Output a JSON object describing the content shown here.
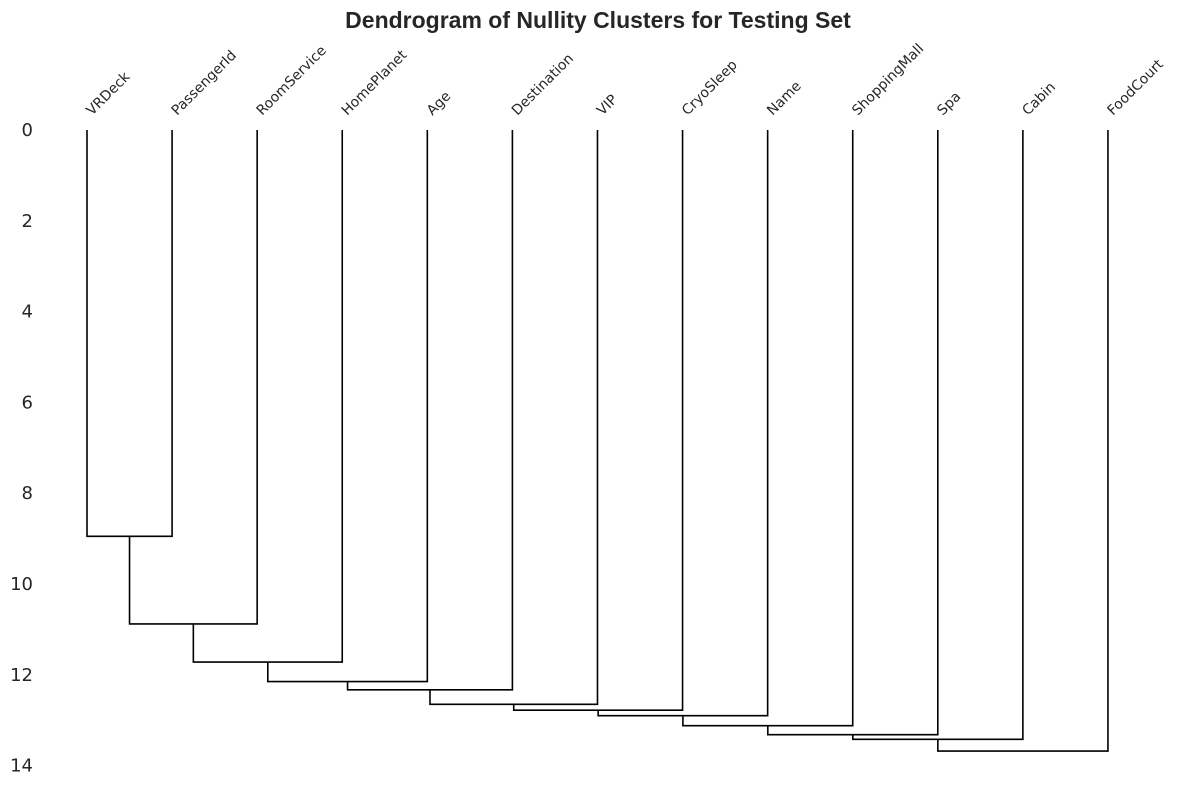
{
  "chart_data": {
    "type": "dendrogram",
    "title": "Dendrogram of Nullity Clusters for Testing Set",
    "xlabel": "",
    "ylabel": "",
    "leaves": [
      "VRDeck",
      "PassengerId",
      "RoomService",
      "HomePlanet",
      "Age",
      "Destination",
      "VIP",
      "CryoSleep",
      "Name",
      "ShoppingMall",
      "Spa",
      "Cabin",
      "FoodCourt"
    ],
    "merges": [
      {
        "left": "VRDeck",
        "right": "PassengerId",
        "height": 8.95
      },
      {
        "left": "VRDeck+PassengerId",
        "right": "RoomService",
        "height": 10.88
      },
      {
        "left": "VRDeck+PassengerId+RoomService",
        "right": "HomePlanet",
        "height": 11.72
      },
      {
        "left": "VRDeck+PassengerId+RoomService+HomePlanet",
        "right": "Age",
        "height": 12.15
      },
      {
        "left": "VRDeck..Age",
        "right": "Destination",
        "height": 12.33
      },
      {
        "left": "VRDeck..Destination",
        "right": "VIP",
        "height": 12.65
      },
      {
        "left": "VRDeck..VIP",
        "right": "CryoSleep",
        "height": 12.78
      },
      {
        "left": "VRDeck..CryoSleep",
        "right": "Name",
        "height": 12.9
      },
      {
        "left": "VRDeck..Name",
        "right": "ShoppingMall",
        "height": 13.12
      },
      {
        "left": "VRDeck..ShoppingMall",
        "right": "Spa",
        "height": 13.32
      },
      {
        "left": "VRDeck..Spa",
        "right": "Cabin",
        "height": 13.42
      },
      {
        "left": "VRDeck..Cabin",
        "right": "FoodCourt",
        "height": 13.68
      }
    ],
    "yticks": [
      0,
      2,
      4,
      6,
      8,
      10,
      12,
      14
    ],
    "ylim": [
      0,
      14
    ],
    "y_inverted": true,
    "grid": false,
    "line_color": "#000000"
  }
}
